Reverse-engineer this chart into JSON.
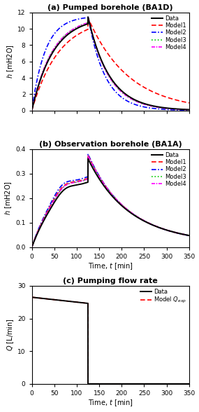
{
  "title_a": "(a) Pumped borehole (BA1D)",
  "title_b": "(b) Observation borehole (BA1A)",
  "title_c": "(c) Pumping flow rate",
  "xlabel": "Time, $t$ [min]",
  "ylabel_ab": "$h$ [mH2O]",
  "ylabel_c": "$Q$ [L/min]",
  "xlim": [
    0,
    350
  ],
  "ylim_a": [
    0,
    12
  ],
  "ylim_b": [
    0,
    0.4
  ],
  "ylim_c": [
    0,
    30
  ],
  "xticks": [
    0,
    50,
    100,
    150,
    200,
    250,
    300,
    350
  ],
  "yticks_a": [
    0,
    2,
    4,
    6,
    8,
    10,
    12
  ],
  "yticks_b": [
    0.0,
    0.1,
    0.2,
    0.3,
    0.4
  ],
  "yticks_c": [
    0,
    10,
    20,
    30
  ],
  "pump_stop": 125,
  "colors": {
    "data": "#000000",
    "model1": "#ff0000",
    "model2": "#0000ff",
    "model3": "#00cc00",
    "model4": "#ff00ff"
  }
}
